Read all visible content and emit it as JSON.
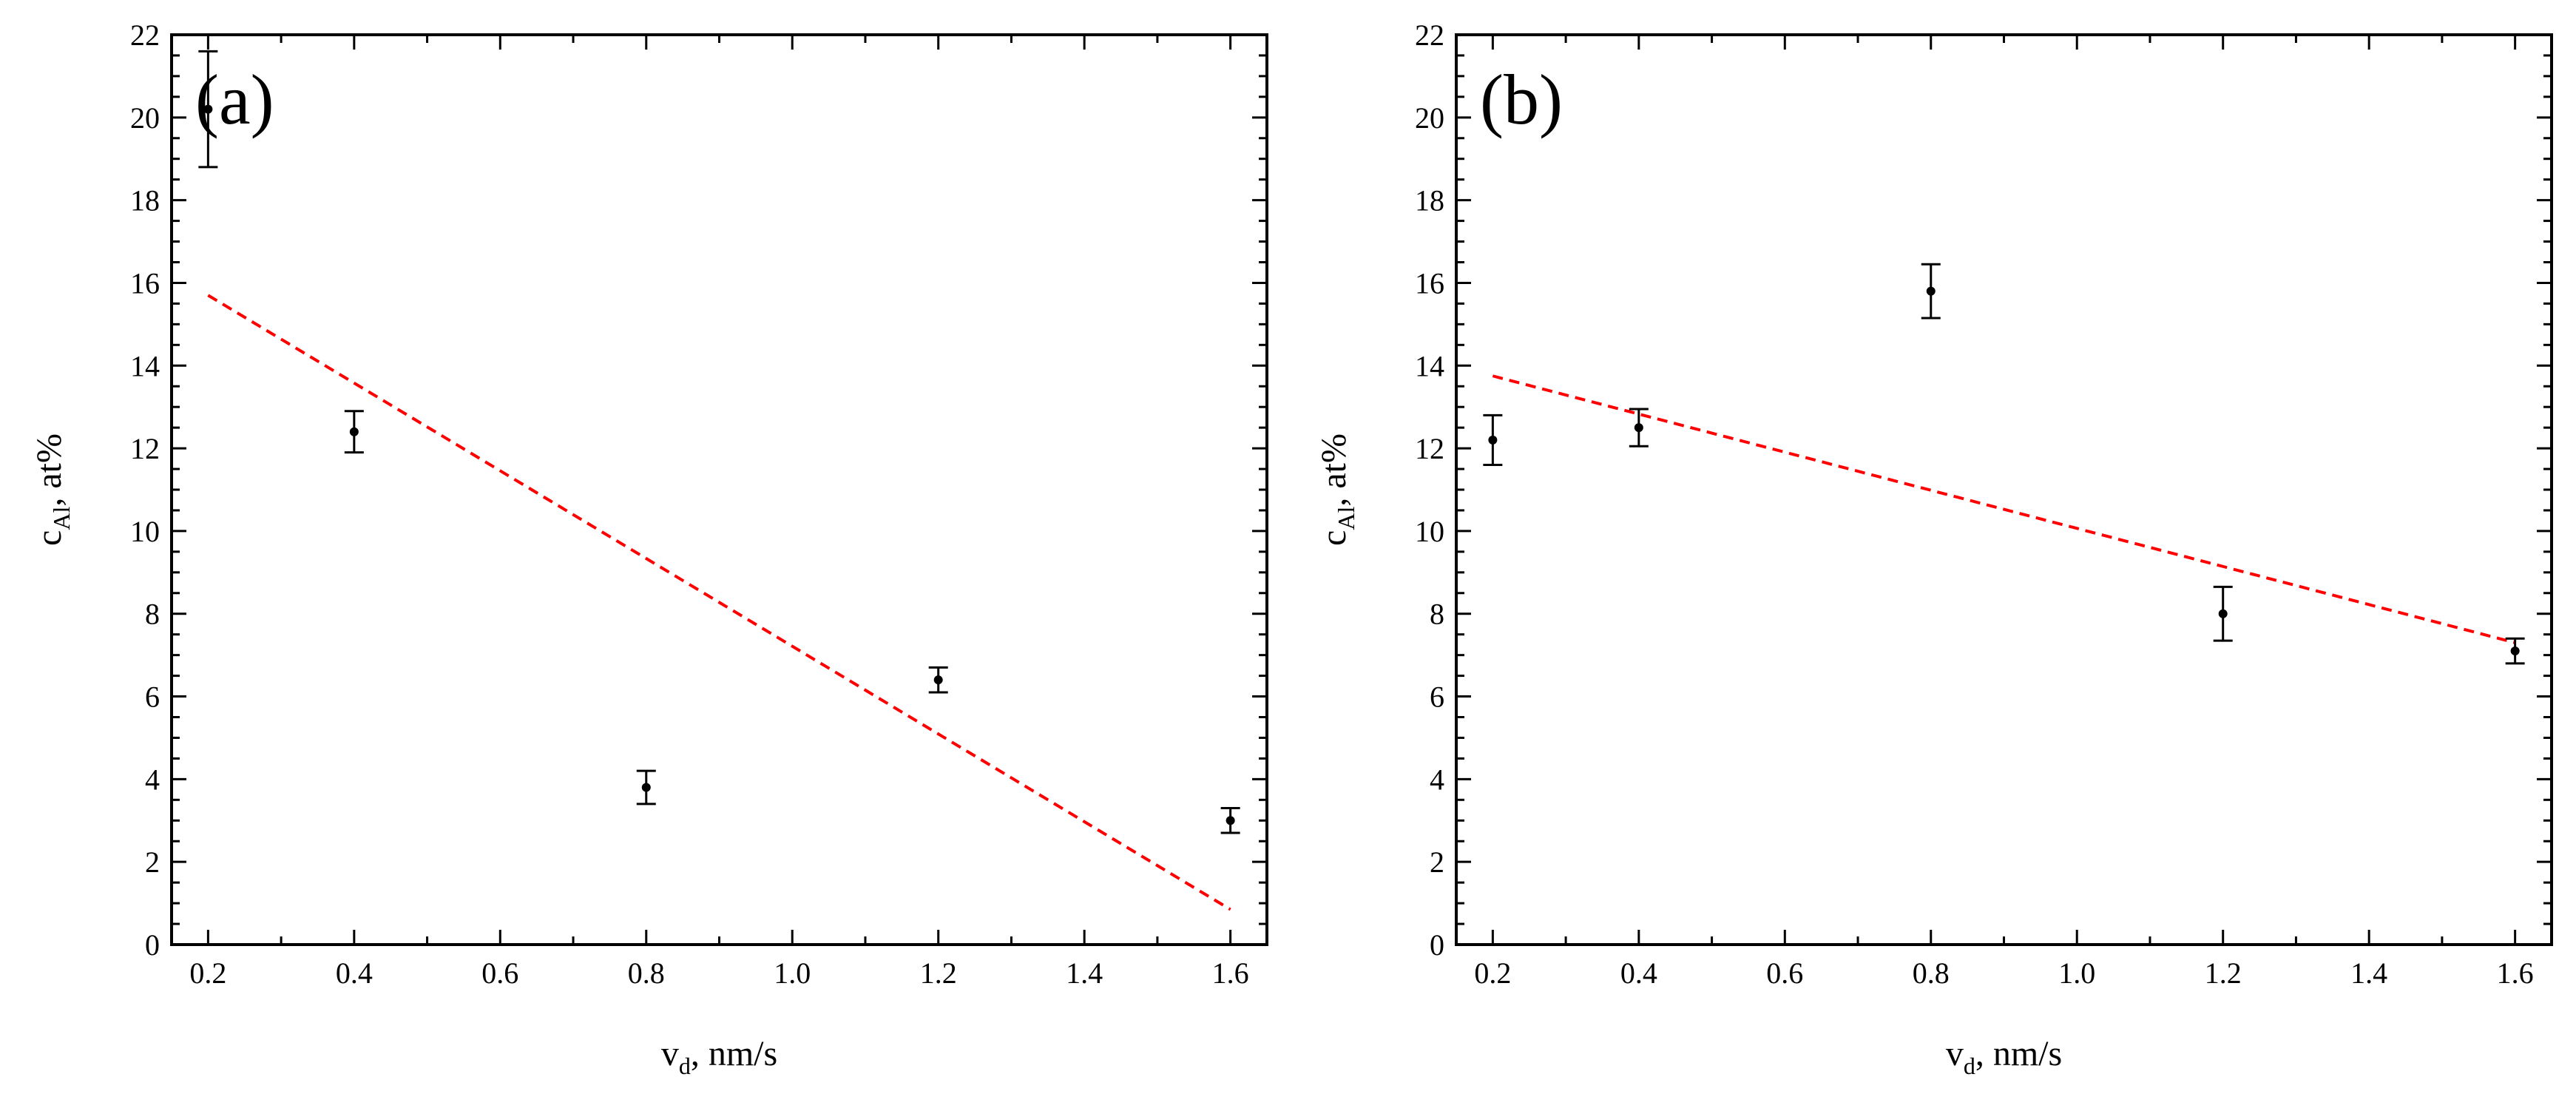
{
  "chart_data": [
    {
      "type": "scatter",
      "panel_label": "(a)",
      "xlabel_main": "v",
      "xlabel_sub": "d",
      "xlabel_rest": ", nm/s",
      "ylabel_main": "c",
      "ylabel_sub": "Al",
      "ylabel_rest": ", at%",
      "xlim": [
        0.15,
        1.65
      ],
      "ylim": [
        0,
        22
      ],
      "xticks": [
        "0.2",
        "0.4",
        "0.6",
        "0.8",
        "1.0",
        "1.2",
        "1.4",
        "1.6"
      ],
      "yticks": [
        "0",
        "2",
        "4",
        "6",
        "8",
        "10",
        "12",
        "14",
        "16",
        "18",
        "20",
        "22"
      ],
      "points": [
        {
          "x": 0.2,
          "y": 20.2,
          "err": 1.4
        },
        {
          "x": 0.4,
          "y": 12.4,
          "err": 0.5
        },
        {
          "x": 0.8,
          "y": 3.8,
          "err": 0.4
        },
        {
          "x": 1.2,
          "y": 6.4,
          "err": 0.3
        },
        {
          "x": 1.6,
          "y": 3.0,
          "err": 0.3
        }
      ],
      "fit": {
        "x": [
          0.2,
          1.6
        ],
        "y": [
          15.7,
          0.85
        ],
        "style": "dashed red"
      }
    },
    {
      "type": "scatter",
      "panel_label": "(b)",
      "xlabel_main": "v",
      "xlabel_sub": "d",
      "xlabel_rest": ", nm/s",
      "ylabel_main": "c",
      "ylabel_sub": "Al",
      "ylabel_rest": ", at%",
      "xlim": [
        0.15,
        1.65
      ],
      "ylim": [
        0,
        22
      ],
      "xticks": [
        "0.2",
        "0.4",
        "0.6",
        "0.8",
        "1.0",
        "1.2",
        "1.4",
        "1.6"
      ],
      "yticks": [
        "0",
        "2",
        "4",
        "6",
        "8",
        "10",
        "12",
        "14",
        "16",
        "18",
        "20",
        "22"
      ],
      "points": [
        {
          "x": 0.2,
          "y": 12.2,
          "err": 0.6
        },
        {
          "x": 0.4,
          "y": 12.5,
          "err": 0.45
        },
        {
          "x": 0.8,
          "y": 15.8,
          "err": 0.65
        },
        {
          "x": 1.2,
          "y": 8.0,
          "err": 0.65
        },
        {
          "x": 1.6,
          "y": 7.1,
          "err": 0.3
        }
      ],
      "fit": {
        "x": [
          0.2,
          1.6
        ],
        "y": [
          13.75,
          7.3
        ],
        "style": "dashed red"
      }
    }
  ]
}
